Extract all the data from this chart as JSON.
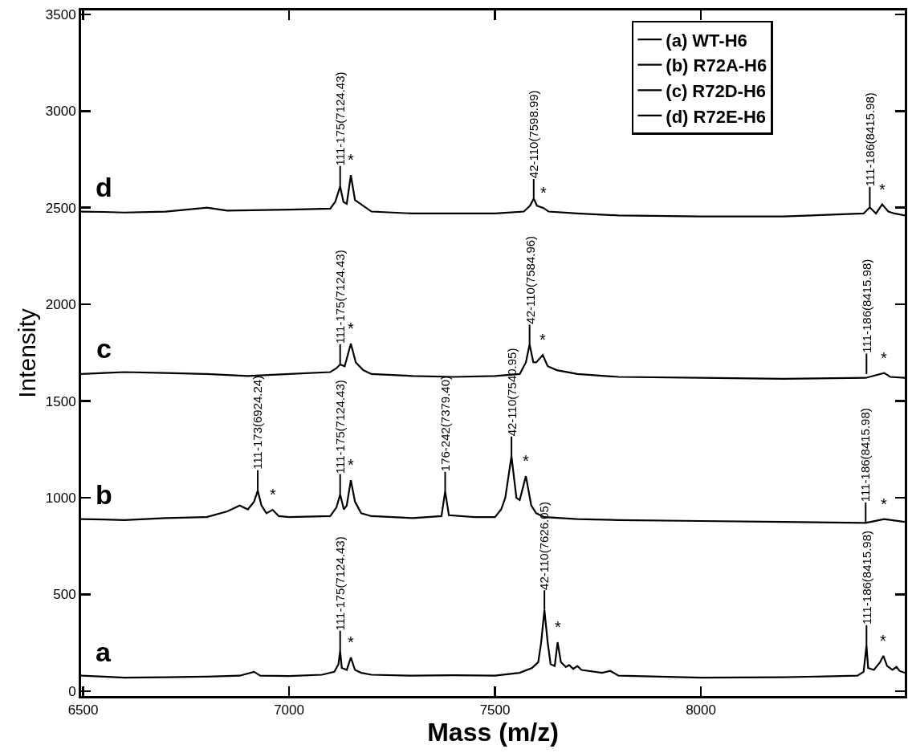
{
  "chart_data": {
    "type": "line",
    "xlabel": "Mass (m/z)",
    "ylabel": "Intensity",
    "xlim": [
      6495,
      8495
    ],
    "xticks": [
      6500,
      7000,
      7500,
      8000
    ],
    "ylim": [
      -25,
      3520
    ],
    "yticks": [
      0,
      500,
      1000,
      1500,
      2000,
      2500,
      3000,
      3500
    ],
    "grid": false,
    "legend": "top right",
    "marker": "none",
    "line_style": "solid",
    "series": [
      {
        "name": "(a) WT-H6",
        "color": "#000000",
        "x": [
          6495,
          6550,
          6600,
          6700,
          6800,
          6880,
          6915,
          6930,
          7000,
          7080,
          7110,
          7120,
          7124,
          7128,
          7140,
          7150,
          7160,
          7175,
          7200,
          7300,
          7400,
          7500,
          7560,
          7590,
          7605,
          7612,
          7620,
          7628,
          7635,
          7645,
          7652,
          7660,
          7672,
          7680,
          7690,
          7700,
          7710,
          7760,
          7780,
          7800,
          8000,
          8200,
          8380,
          8395,
          8402,
          8406,
          8420,
          8435,
          8443,
          8452,
          8465,
          8475,
          8482,
          8495
        ],
        "values": [
          80,
          75,
          70,
          72,
          75,
          80,
          100,
          80,
          78,
          85,
          100,
          140,
          207,
          120,
          110,
          174,
          110,
          95,
          85,
          80,
          82,
          80,
          95,
          120,
          150,
          250,
          420,
          250,
          140,
          130,
          253,
          150,
          125,
          135,
          115,
          130,
          110,
          95,
          105,
          80,
          70,
          72,
          80,
          100,
          236,
          120,
          110,
          150,
          183,
          130,
          110,
          125,
          105,
          95
        ]
      },
      {
        "name": "(b) R72A-H6",
        "color": "#000000",
        "x": [
          6495,
          6550,
          6600,
          6700,
          6800,
          6850,
          6880,
          6900,
          6915,
          6924,
          6933,
          6945,
          6960,
          6975,
          7000,
          7100,
          7115,
          7124,
          7133,
          7140,
          7150,
          7160,
          7175,
          7200,
          7300,
          7370,
          7379,
          7388,
          7450,
          7500,
          7515,
          7525,
          7540,
          7552,
          7560,
          7575,
          7588,
          7600,
          7620,
          7700,
          7800,
          8000,
          8200,
          8400,
          8445,
          8495
        ],
        "values": [
          890,
          888,
          885,
          895,
          900,
          930,
          960,
          940,
          980,
          1037,
          960,
          920,
          938,
          905,
          900,
          905,
          950,
          1017,
          940,
          960,
          1091,
          980,
          920,
          905,
          895,
          905,
          1033,
          910,
          900,
          900,
          940,
          1000,
          1215,
          1000,
          988,
          1112,
          960,
          920,
          900,
          890,
          885,
          880,
          875,
          870,
          890,
          875
        ]
      },
      {
        "name": "(c) R72D-H6",
        "color": "#000000",
        "x": [
          6495,
          6550,
          6600,
          6700,
          6800,
          6900,
          7000,
          7100,
          7115,
          7124,
          7135,
          7150,
          7162,
          7180,
          7200,
          7300,
          7400,
          7500,
          7560,
          7575,
          7584,
          7593,
          7600,
          7616,
          7628,
          7650,
          7700,
          7800,
          8000,
          8200,
          8400,
          8445,
          8460,
          8495
        ],
        "values": [
          1640,
          1645,
          1650,
          1645,
          1640,
          1630,
          1640,
          1650,
          1670,
          1689,
          1680,
          1797,
          1700,
          1660,
          1640,
          1630,
          1625,
          1630,
          1640,
          1700,
          1793,
          1701,
          1700,
          1738,
          1680,
          1660,
          1640,
          1625,
          1620,
          1615,
          1620,
          1645,
          1625,
          1620
        ]
      },
      {
        "name": "(d) R72E-H6",
        "color": "#000000",
        "x": [
          6495,
          6550,
          6600,
          6700,
          6800,
          6850,
          7000,
          7100,
          7112,
          7124,
          7132,
          7140,
          7150,
          7160,
          7180,
          7200,
          7300,
          7500,
          7570,
          7585,
          7594,
          7602,
          7618,
          7630,
          7700,
          7800,
          8000,
          8200,
          8395,
          8410,
          8425,
          8440,
          8455,
          8470,
          8495
        ],
        "values": [
          2480,
          2478,
          2475,
          2480,
          2500,
          2485,
          2490,
          2495,
          2530,
          2610,
          2530,
          2520,
          2668,
          2540,
          2510,
          2480,
          2470,
          2470,
          2480,
          2510,
          2547,
          2510,
          2498,
          2480,
          2470,
          2460,
          2455,
          2455,
          2470,
          2502,
          2470,
          2517,
          2480,
          2470,
          2460
        ]
      }
    ],
    "annotations": [
      {
        "text": "a",
        "x": 6550,
        "y": 75
      },
      {
        "text": "b",
        "x": 6550,
        "y": 888
      },
      {
        "text": "c",
        "x": 6550,
        "y": 1645
      },
      {
        "text": "d",
        "x": 6550,
        "y": 2478
      },
      {
        "text": "111-175(7124.43)",
        "x": 7124,
        "y": 207
      },
      {
        "text": "42-110(7626.05)",
        "x": 7620,
        "y": 420
      },
      {
        "text": "111-186(8415.98)",
        "x": 8402,
        "y": 236
      },
      {
        "text": "111-173(6924.24)",
        "x": 6924,
        "y": 1037
      },
      {
        "text": "111-175(7124.43)",
        "x": 7124,
        "y": 1017
      },
      {
        "text": "176-242(7379.40)",
        "x": 7379,
        "y": 1033
      },
      {
        "text": "42-110(7540.95)",
        "x": 7540,
        "y": 1215
      },
      {
        "text": "111-186(8415.98)",
        "x": 8400,
        "y": 870
      },
      {
        "text": "111-175(7124.43)",
        "x": 7124,
        "y": 1689
      },
      {
        "text": "42-110(7584.96)",
        "x": 7584,
        "y": 1793
      },
      {
        "text": "111-186(8415.98)",
        "x": 8402,
        "y": 1640
      },
      {
        "text": "111-175(7124.43)",
        "x": 7124,
        "y": 2610
      },
      {
        "text": "42-110(7598.99)",
        "x": 7594,
        "y": 2547
      },
      {
        "text": "111-186(8415.98)",
        "x": 8410,
        "y": 2502
      },
      {
        "text": "*",
        "x": 7150,
        "y": 174
      },
      {
        "text": "*",
        "x": 7652,
        "y": 253
      },
      {
        "text": "*",
        "x": 8443,
        "y": 183
      },
      {
        "text": "*",
        "x": 6960,
        "y": 938
      },
      {
        "text": "*",
        "x": 7150,
        "y": 1091
      },
      {
        "text": "*",
        "x": 7575,
        "y": 1112
      },
      {
        "text": "*",
        "x": 8445,
        "y": 890
      },
      {
        "text": "*",
        "x": 7150,
        "y": 1797
      },
      {
        "text": "*",
        "x": 7616,
        "y": 1738
      },
      {
        "text": "*",
        "x": 8445,
        "y": 1645
      },
      {
        "text": "*",
        "x": 7150,
        "y": 2668
      },
      {
        "text": "*",
        "x": 7618,
        "y": 2498
      },
      {
        "text": "*",
        "x": 8440,
        "y": 2517
      }
    ]
  }
}
